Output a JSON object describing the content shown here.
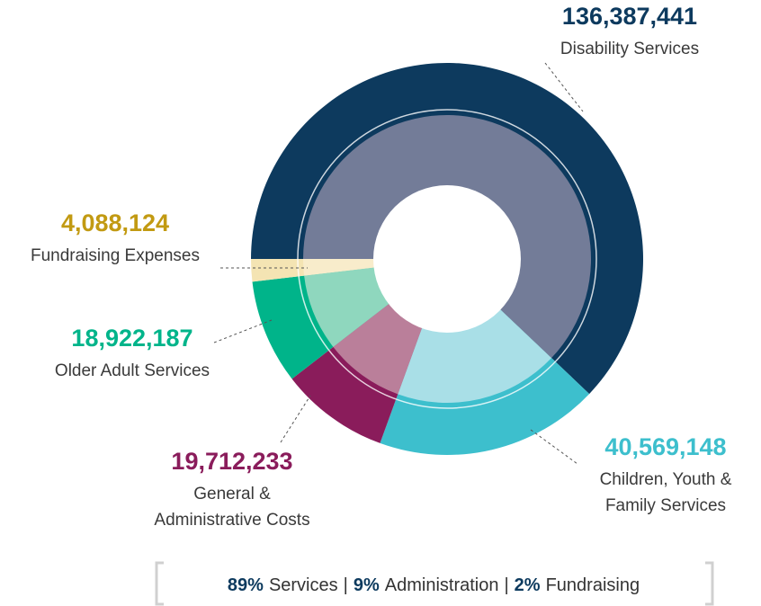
{
  "chart_data": {
    "type": "donut",
    "series": [
      {
        "name_lines": [
          "Disability Services"
        ],
        "value": 136387441,
        "value_label": "136,387,441",
        "color": "#0d3a5e",
        "inner_color": "#737c98",
        "label_color": "#0d3a5e"
      },
      {
        "name_lines": [
          "Children, Youth &",
          "Family Services"
        ],
        "value": 40569148,
        "value_label": "40,569,148",
        "color": "#3dbfcd",
        "inner_color": "#a9dfe7",
        "label_color": "#3dbfcd"
      },
      {
        "name_lines": [
          "General &",
          "Administrative Costs"
        ],
        "value": 19712233,
        "value_label": "19,712,233",
        "color": "#8a1c5b",
        "inner_color": "#ba7f9a",
        "label_color": "#8a1c5b"
      },
      {
        "name_lines": [
          "Older Adult Services"
        ],
        "value": 18922187,
        "value_label": "18,922,187",
        "color": "#00b48a",
        "inner_color": "#8fd7be",
        "label_color": "#00b48a"
      },
      {
        "name_lines": [
          "Fundraising Expenses"
        ],
        "value": 4088124,
        "value_label": "4,088,124",
        "color": "#f4e4b3",
        "inner_color": "#f8eccb",
        "label_color": "#c29a12"
      }
    ],
    "summary": [
      {
        "percent": "89%",
        "label": "Services"
      },
      {
        "percent": "9%",
        "label": "Administration"
      },
      {
        "percent": "2%",
        "label": "Fundraising"
      }
    ],
    "separator": "|"
  }
}
